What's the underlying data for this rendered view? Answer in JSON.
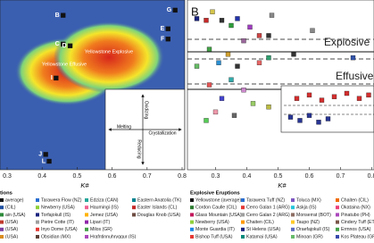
{
  "chart_data": [
    {
      "type": "scatter",
      "x_label": "K#",
      "xlim": [
        0.3,
        0.8
      ],
      "ylim": [
        0,
        1
      ],
      "xticks": [
        0.3,
        0.4,
        0.5,
        0.6,
        0.7,
        0.8
      ],
      "regions": [
        "Yellowstone Effusive",
        "Yellowstone Explosive"
      ],
      "inset": [
        "Melting",
        "Oxidizing",
        "Crystallization",
        "Reducing"
      ],
      "point_labels": [
        "B",
        "C",
        "D",
        "E",
        "F",
        "G",
        "I",
        "J",
        "L"
      ],
      "x": [
        0.46,
        0.46,
        0.48,
        0.76,
        0.76,
        0.78,
        0.44,
        0.41,
        0.42
      ],
      "y": [
        0.91,
        0.74,
        0.73,
        0.83,
        0.77,
        0.94,
        0.54,
        0.09,
        0.05
      ],
      "color": "#111111",
      "legend_title": "tions",
      "legend": [
        {
          "name": "average)",
          "color": "#111111"
        },
        {
          "name": "(CIL)",
          "color": "#1f4fa0"
        },
        {
          "name": "ain (USA)",
          "color": "#2c8a3a"
        },
        {
          "name": "(USA)",
          "color": "#c0392b"
        },
        {
          "name": "(USA)",
          "color": "#7a3fa0"
        },
        {
          "name": "(USA)",
          "color": "#d98b1e"
        },
        {
          "name": "Tarawera Flow (NZ)",
          "color": "#2b6fd1"
        },
        {
          "name": "Newberry (USA)",
          "color": "#8fd13a"
        },
        {
          "name": "Torfajokull (IS)",
          "color": "#1a237e"
        },
        {
          "name": "Pietre Cotte (IT)",
          "color": "#9e9e9e"
        },
        {
          "name": "Inyo Dome (USA)",
          "color": "#e53935"
        },
        {
          "name": "Obsidian (MX)",
          "color": "#5d4037"
        },
        {
          "name": "Edziza (CAN)",
          "color": "#26a69a"
        },
        {
          "name": "Haumingi (IS)",
          "color": "#f06292"
        },
        {
          "name": "Jemez (USA)",
          "color": "#ffb300"
        },
        {
          "name": "Lipari (IT)",
          "color": "#8e24aa"
        },
        {
          "name": "Milos (GR)",
          "color": "#43a047"
        },
        {
          "name": "Hrafntinnuhryggur (IS)",
          "color": "#ab47bc"
        },
        {
          "name": "Eastern Anatolia (TK)",
          "color": "#00838f"
        },
        {
          "name": "Easter Islands (CL)",
          "color": "#c62828"
        },
        {
          "name": "Douglas Knob (USA)",
          "color": "#6d4c41"
        }
      ]
    },
    {
      "type": "scatter",
      "label": "B",
      "x_label": "K#",
      "xlim": [
        0.21,
        0.81
      ],
      "ylim": [
        0,
        1
      ],
      "xticks": [
        0.3,
        0.4,
        0.5,
        0.6,
        0.7,
        0.8
      ],
      "bands": [
        "Explosive",
        "Effusive"
      ],
      "x": [
        0.24,
        0.27,
        0.29,
        0.32,
        0.35,
        0.37,
        0.41,
        0.44,
        0.47,
        0.48,
        0.28,
        0.31,
        0.34,
        0.37,
        0.44,
        0.47,
        0.39,
        0.24,
        0.28,
        0.32,
        0.35,
        0.39,
        0.42,
        0.3,
        0.36,
        0.47,
        0.27,
        0.55,
        0.61,
        0.74,
        0.56,
        0.6,
        0.64,
        0.68,
        0.72,
        0.76,
        0.79,
        0.54,
        0.57,
        0.6,
        0.63,
        0.66
      ],
      "y": [
        0.89,
        0.88,
        0.93,
        0.88,
        0.85,
        0.89,
        0.84,
        0.79,
        0.79,
        0.91,
        0.71,
        0.63,
        0.68,
        0.61,
        0.63,
        0.66,
        0.76,
        0.61,
        0.5,
        0.42,
        0.53,
        0.47,
        0.39,
        0.34,
        0.32,
        0.37,
        0.29,
        0.68,
        0.82,
        0.66,
        0.42,
        0.44,
        0.41,
        0.43,
        0.45,
        0.42,
        0.44,
        0.31,
        0.29,
        0.32,
        0.28,
        0.3
      ],
      "colors": [
        "#1a237e",
        "#c62828",
        "#d4c44a",
        "#333333",
        "#2e9d3a",
        "#2233aa",
        "#a03cc0",
        "#cc4444",
        "#333333",
        "#888888",
        "#43a047",
        "#2b8fd1",
        "#d0a030",
        "#333333",
        "#e66666",
        "#30a070",
        "#996699",
        "#66bb66",
        "#e55555",
        "#4444cc",
        "#33aaaa",
        "#cc88cc",
        "#99cc66",
        "#ee99aa",
        "#666666",
        "#bbbb44",
        "#55cc55",
        "#333333",
        "#888888",
        "#3355aa",
        "#d32f2f",
        "#d32f2f",
        "#d32f2f",
        "#d32f2f",
        "#d32f2f",
        "#d32f2f",
        "#d32f2f",
        "#283593",
        "#283593",
        "#283593",
        "#283593",
        "#283593"
      ],
      "legend_title": "Explosive Eruptions",
      "legend": [
        {
          "name": "Yellowstone (average)",
          "color": "#111111"
        },
        {
          "name": "Cordon Caulle (CIL)",
          "color": "#2e7d32"
        },
        {
          "name": "Glass Mountain (USA)",
          "color": "#c2185b"
        },
        {
          "name": "Newberry (USA)",
          "color": "#8fd13a"
        },
        {
          "name": "Monte Guardia (IT)",
          "color": "#1e88e5"
        },
        {
          "name": "Bishop Tuff (USA)",
          "color": "#e53935"
        },
        {
          "name": "Tarawera Tuff (NZ)",
          "color": "#2b6fd1"
        },
        {
          "name": "Cerro Galan 1 (ARG)",
          "color": "#e53935"
        },
        {
          "name": "Cerro Galan 2 (ARG)",
          "color": "#9e9e9e"
        },
        {
          "name": "Chaiten (CIL)",
          "color": "#ff9800"
        },
        {
          "name": "St Helens (USA)",
          "color": "#1a237e"
        },
        {
          "name": "Katamai (USA)",
          "color": "#00897b"
        },
        {
          "name": "Toluca (MX)",
          "color": "#7e57c2"
        },
        {
          "name": "Askja (IS)",
          "color": "#26c6da"
        },
        {
          "name": "Monserrat (BOT)",
          "color": "#8d6e63"
        },
        {
          "name": "Taupo (NZ)",
          "color": "#ffca28"
        },
        {
          "name": "Oraefajokull (IS)",
          "color": "#5c6bc0"
        },
        {
          "name": "Minoan (GR)",
          "color": "#66bb6a"
        },
        {
          "name": "Chaiten (CIL)",
          "color": "#ef6c00"
        },
        {
          "name": "Okataina (NX)",
          "color": "#ec407a"
        },
        {
          "name": "Pinatubo (PH)",
          "color": "#ab47bc"
        },
        {
          "name": "Cindery Tuff (ET)",
          "color": "#795548"
        },
        {
          "name": "Ermnos (USA)",
          "color": "#43a047"
        },
        {
          "name": "Kos Plateau (GR)",
          "color": "#3949ab"
        }
      ]
    }
  ]
}
